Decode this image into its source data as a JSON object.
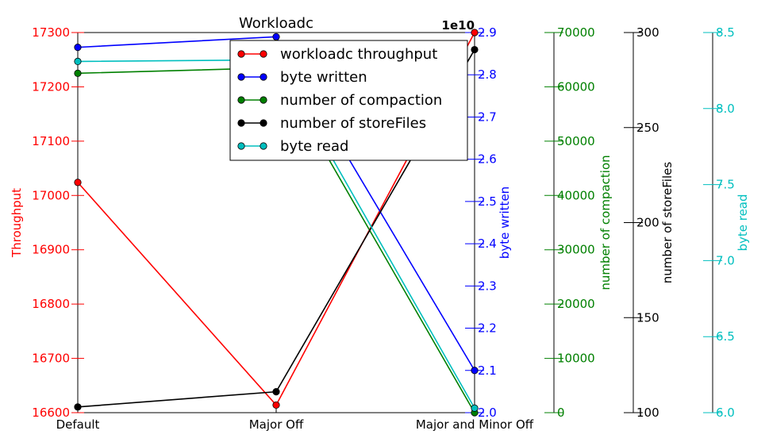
{
  "chart_data": {
    "type": "line",
    "title": "Workloadc",
    "categories": [
      "Default",
      "Major Off",
      "Major and Minor Off"
    ],
    "axes": [
      {
        "id": "throughput",
        "label": "Throughput",
        "color": "#ff0000",
        "side": "left",
        "ylim": [
          16600,
          17300
        ],
        "ticks": [
          {
            "value": 16600,
            "label": "16600"
          },
          {
            "value": 16700,
            "label": "16700"
          },
          {
            "value": 16800,
            "label": "16800"
          },
          {
            "value": 16900,
            "label": "16900"
          },
          {
            "value": 17000,
            "label": "17000"
          },
          {
            "value": 17100,
            "label": "17100"
          },
          {
            "value": 17200,
            "label": "17200"
          },
          {
            "value": 17300,
            "label": "17300"
          }
        ],
        "offset_text": ""
      },
      {
        "id": "bytes_written",
        "label": "byte written",
        "color": "#0000ff",
        "side": "right",
        "ylim": [
          2.0,
          2.9
        ],
        "ticks": [
          {
            "value": 2.0,
            "label": "2.0"
          },
          {
            "value": 2.1,
            "label": "2.1"
          },
          {
            "value": 2.2,
            "label": "2.2"
          },
          {
            "value": 2.3,
            "label": "2.3"
          },
          {
            "value": 2.4,
            "label": "2.4"
          },
          {
            "value": 2.5,
            "label": "2.5"
          },
          {
            "value": 2.6,
            "label": "2.6"
          },
          {
            "value": 2.7,
            "label": "2.7"
          },
          {
            "value": 2.8,
            "label": "2.8"
          },
          {
            "value": 2.9,
            "label": "2.9"
          }
        ],
        "offset_text": "1e10"
      },
      {
        "id": "compactions",
        "label": "number of compaction",
        "color": "#008000",
        "side": "right",
        "ylim": [
          0,
          70000
        ],
        "ticks": [
          {
            "value": 0,
            "label": "0"
          },
          {
            "value": 10000,
            "label": "10000"
          },
          {
            "value": 20000,
            "label": "20000"
          },
          {
            "value": 30000,
            "label": "30000"
          },
          {
            "value": 40000,
            "label": "40000"
          },
          {
            "value": 50000,
            "label": "50000"
          },
          {
            "value": 60000,
            "label": "60000"
          },
          {
            "value": 70000,
            "label": "70000"
          }
        ],
        "offset_text": ""
      },
      {
        "id": "storefiles",
        "label": "number of storeFiles",
        "color": "#000000",
        "side": "right",
        "ylim": [
          100,
          300
        ],
        "ticks": [
          {
            "value": 100,
            "label": "100"
          },
          {
            "value": 150,
            "label": "150"
          },
          {
            "value": 200,
            "label": "200"
          },
          {
            "value": 250,
            "label": "250"
          },
          {
            "value": 300,
            "label": "300"
          }
        ],
        "offset_text": ""
      },
      {
        "id": "bytes_read",
        "label": "byte read",
        "color": "#00bfbf",
        "side": "right",
        "ylim": [
          6.0,
          8.5
        ],
        "ticks": [
          {
            "value": 6.0,
            "label": "6.0"
          },
          {
            "value": 6.5,
            "label": "6.5"
          },
          {
            "value": 7.0,
            "label": "7.0"
          },
          {
            "value": 7.5,
            "label": "7.5"
          },
          {
            "value": 8.0,
            "label": "8.0"
          },
          {
            "value": 8.5,
            "label": "8.5"
          }
        ],
        "offset_text": ""
      }
    ],
    "series": [
      {
        "name": "workloadc throughput",
        "axis": "throughput",
        "color": "#ff0000",
        "lineColor": "#ff0000",
        "values": [
          17024,
          16614,
          17300
        ]
      },
      {
        "name": "byte written",
        "axis": "bytes_written",
        "color": "#0000ff",
        "lineColor": "#0000ff",
        "values": [
          2.865,
          2.89,
          2.1
        ]
      },
      {
        "name": "number of compaction",
        "axis": "compactions",
        "color": "#008000",
        "lineColor": "#008000",
        "values": [
          62500,
          63500,
          0
        ]
      },
      {
        "name": "number of storeFiles",
        "axis": "storefiles",
        "color": "#000000",
        "lineColor": "#000000",
        "values": [
          103,
          111,
          291
        ]
      },
      {
        "name": "byte read",
        "axis": "bytes_read",
        "color": "#00bfbf",
        "lineColor": "#00bfbf",
        "values": [
          8.31,
          8.32,
          6.03
        ]
      }
    ],
    "legend_order": [
      "workloadc throughput",
      "byte written",
      "number of compaction",
      "number of storeFiles",
      "byte read"
    ],
    "legend_position": "upper center",
    "grid": false
  }
}
